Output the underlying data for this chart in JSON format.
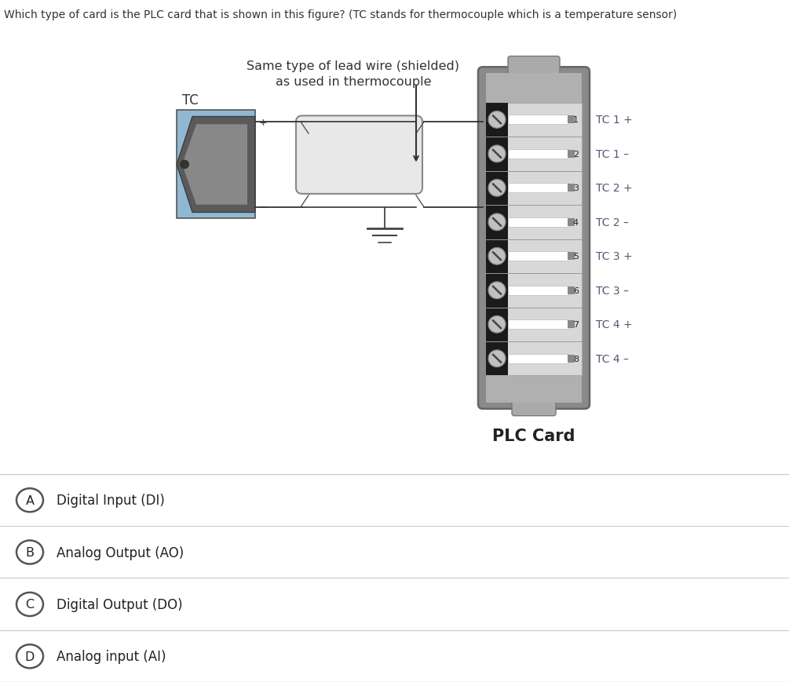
{
  "question": "Which type of card is the PLC card that is shown in this figure? (TC stands for thermocouple which is a temperature sensor)",
  "title_annotation_line1": "Same type of lead wire (shielded)",
  "title_annotation_line2": "as used in thermocouple",
  "plc_card_label": "PLC Card",
  "tc_label": "TC",
  "plus_label": "+",
  "minus_label": "−",
  "tc_channels": [
    "TC 1 +",
    "TC 1 –",
    "TC 2 +",
    "TC 2 –",
    "TC 3 +",
    "TC 3 –",
    "TC 4 +",
    "TC 4 –"
  ],
  "options": [
    {
      "letter": "A",
      "text": "Digital Input (DI)"
    },
    {
      "letter": "B",
      "text": "Analog Output (AO)"
    },
    {
      "letter": "C",
      "text": "Digital Output (DO)"
    },
    {
      "letter": "D",
      "text": "Analog input (AI)"
    }
  ],
  "bg_color": "#ffffff",
  "diagram_bg": "#efefef",
  "option_bg": "#f5f5f5",
  "option_border": "#cccccc",
  "card_gray": "#8a8a8a",
  "card_light": "#c8c8c8",
  "card_inner_bg": "#d8d8d8",
  "card_dark_strip": "#1a1a1a",
  "card_mid_gray": "#a0a0a0",
  "tc_blue": "#91b8d2",
  "tc_dark": "#444444",
  "wire_dark": "#333333",
  "screw_face": "#c0c0c0",
  "screw_slot": "#444444",
  "screw_edge": "#888888",
  "white_bar": "#f0f0f0",
  "small_gray_sq": "#888888",
  "text_dark": "#333333",
  "channel_label_color": "#555577"
}
